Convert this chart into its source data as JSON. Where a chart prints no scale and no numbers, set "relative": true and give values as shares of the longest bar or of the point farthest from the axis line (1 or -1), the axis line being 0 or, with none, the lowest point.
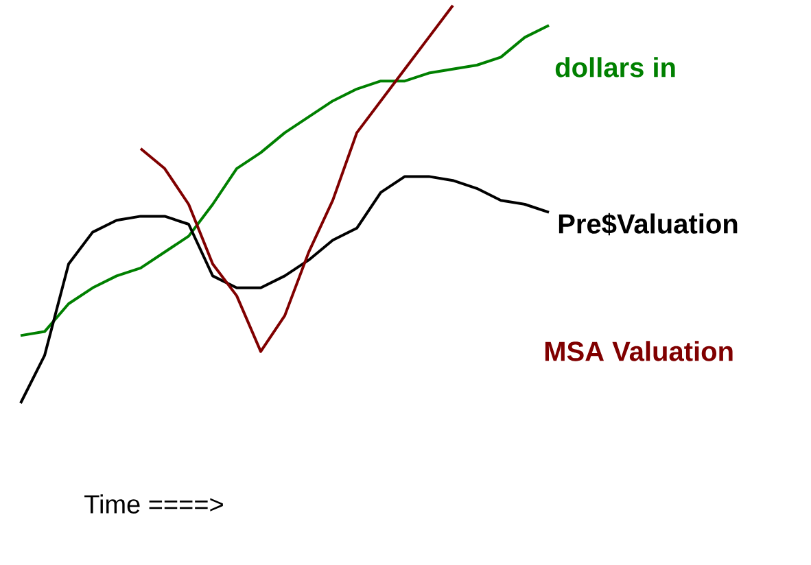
{
  "chart_data": {
    "type": "line",
    "relative": true,
    "xlabel": "Time ====>",
    "categories": [
      null,
      null,
      null,
      null,
      null,
      null,
      null,
      null,
      null,
      null,
      null,
      null,
      null,
      null,
      null,
      null,
      null,
      null,
      null,
      null,
      null,
      null,
      null
    ],
    "series": [
      {
        "name": "dollars in",
        "color": "#008000",
        "values": [
          0.17,
          0.18,
          0.25,
          0.29,
          0.32,
          0.34,
          0.38,
          0.42,
          0.5,
          0.59,
          0.63,
          0.68,
          0.72,
          0.76,
          0.79,
          0.81,
          0.81,
          0.83,
          0.84,
          0.85,
          0.87,
          0.92,
          0.95
        ]
      },
      {
        "name": "Pre$Valuation",
        "color": "#000000",
        "values": [
          0,
          0.12,
          0.35,
          0.43,
          0.46,
          0.47,
          0.47,
          0.45,
          0.32,
          0.29,
          0.29,
          0.32,
          0.36,
          0.41,
          0.44,
          0.53,
          0.57,
          0.57,
          0.56,
          0.54,
          0.51,
          0.5,
          0.48
        ]
      },
      {
        "name": "MSA Valuation",
        "color": "#800000",
        "values": [
          null,
          null,
          null,
          null,
          null,
          0.64,
          0.59,
          0.5,
          0.35,
          0.27,
          0.13,
          0.22,
          0.38,
          0.51,
          0.68,
          0.76,
          0.84,
          0.92,
          1.0,
          null,
          null,
          null,
          null
        ]
      }
    ]
  }
}
